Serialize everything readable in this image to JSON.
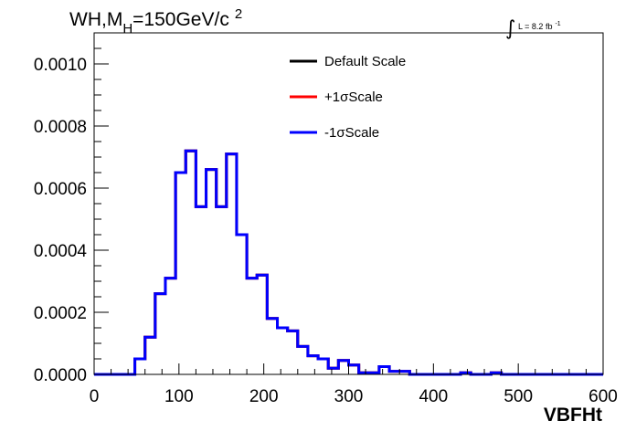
{
  "chart_data": {
    "type": "line",
    "style": "step-histogram",
    "title": {
      "prefix": "WH,M",
      "subscript": "H",
      "value": "=150GeV/c",
      "superscript": "2"
    },
    "luminosity": {
      "symbol": "∫",
      "text": "L = 8.2 fb",
      "superscript": "-1"
    },
    "xlabel": "VBFHt",
    "ylabel": "",
    "xlim": [
      0,
      600
    ],
    "ylim": [
      0,
      0.0011
    ],
    "x_ticks": [
      0,
      100,
      200,
      300,
      400,
      500,
      600
    ],
    "x_tick_labels": [
      "0",
      "100",
      "200",
      "300",
      "400",
      "500",
      "600"
    ],
    "y_ticks": [
      0,
      0.0002,
      0.0004,
      0.0006,
      0.0008,
      0.001
    ],
    "y_tick_labels": [
      "0.0000",
      "0.0002",
      "0.0004",
      "0.0006",
      "0.0008",
      "0.0010"
    ],
    "grid": false,
    "legend_position": "top-center",
    "bin_edges": [
      0,
      12,
      24,
      36,
      48,
      60,
      72,
      84,
      96,
      108,
      120,
      132,
      144,
      156,
      168,
      180,
      192,
      204,
      216,
      228,
      240,
      252,
      264,
      276,
      288,
      300,
      312,
      324,
      336,
      348,
      360,
      372,
      384,
      396,
      408,
      420,
      432,
      444,
      456,
      468,
      480,
      492,
      504,
      516,
      528,
      540,
      552,
      564,
      576,
      588,
      600
    ],
    "series": [
      {
        "name": "Default Scale",
        "color": "#000000",
        "values": [
          0,
          0,
          0,
          0,
          5e-05,
          0.00012,
          0.00026,
          0.00031,
          0.00065,
          0.00072,
          0.00054,
          0.00066,
          0.00054,
          0.00071,
          0.00045,
          0.00031,
          0.00032,
          0.00018,
          0.00015,
          0.00014,
          9e-05,
          6e-05,
          5e-05,
          2e-05,
          4.5e-05,
          3e-05,
          5e-06,
          5e-06,
          2.5e-05,
          1e-05,
          1e-05,
          0,
          0,
          0,
          0,
          0,
          5e-06,
          0,
          0,
          5e-06,
          0,
          0,
          0,
          0,
          0,
          0,
          0,
          0,
          0,
          0
        ]
      },
      {
        "name": "+1σScale",
        "color": "#ff0000",
        "values": [
          0,
          0,
          0,
          0,
          5e-05,
          0.00012,
          0.00026,
          0.00031,
          0.00065,
          0.00072,
          0.00054,
          0.00066,
          0.00054,
          0.00071,
          0.00045,
          0.00031,
          0.00032,
          0.00018,
          0.00015,
          0.00014,
          9e-05,
          6e-05,
          5e-05,
          2e-05,
          4.5e-05,
          3e-05,
          5e-06,
          5e-06,
          2.5e-05,
          1e-05,
          1e-05,
          0,
          0,
          0,
          0,
          0,
          5e-06,
          0,
          0,
          5e-06,
          0,
          0,
          0,
          0,
          0,
          0,
          0,
          0,
          0,
          0
        ]
      },
      {
        "name": "-1σScale",
        "color": "#0000ff",
        "values": [
          0,
          0,
          0,
          0,
          5e-05,
          0.00012,
          0.00026,
          0.00031,
          0.00065,
          0.00072,
          0.00054,
          0.00066,
          0.00054,
          0.00071,
          0.00045,
          0.00031,
          0.00032,
          0.00018,
          0.00015,
          0.00014,
          9e-05,
          6e-05,
          5e-05,
          2e-05,
          4.5e-05,
          3e-05,
          5e-06,
          5e-06,
          2.5e-05,
          1e-05,
          1e-05,
          0,
          0,
          0,
          0,
          0,
          5e-06,
          0,
          0,
          5e-06,
          0,
          0,
          0,
          0,
          0,
          0,
          0,
          0,
          0,
          0
        ]
      }
    ]
  }
}
